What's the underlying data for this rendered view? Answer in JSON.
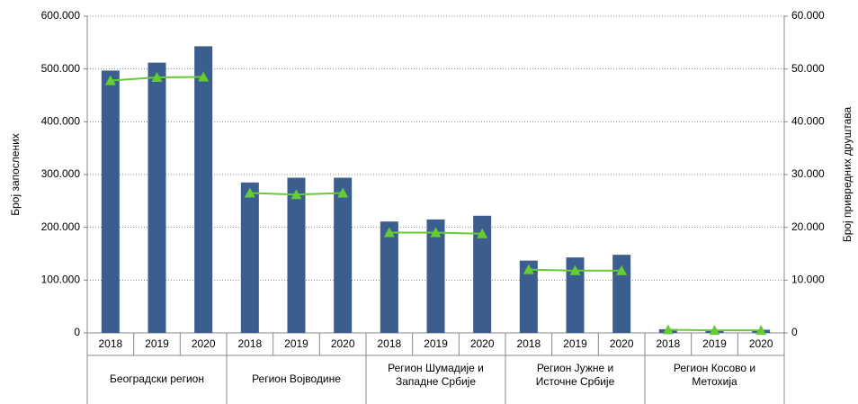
{
  "chart_data": {
    "type": "bar",
    "y_label": "Број  запослених",
    "y2_label": "Број привредних друштава",
    "categories": [
      "2018",
      "2019",
      "2020",
      "2018",
      "2019",
      "2020",
      "2018",
      "2019",
      "2020",
      "2018",
      "2019",
      "2020",
      "2018",
      "2019",
      "2020"
    ],
    "groups": [
      "Београдски регион",
      "Регион Војводине",
      "Регион Шумадије и\nЗападне Србије",
      "Регион Јужне и\nИсточне Србије",
      "Регион Косово и\nМетохија"
    ],
    "series": [
      {
        "type": "bar",
        "color": "#3b5e8e",
        "values": [
          497000,
          512000,
          543000,
          285000,
          294000,
          294000,
          211000,
          215000,
          222000,
          137000,
          143000,
          148000,
          7000,
          6000,
          6000
        ]
      },
      {
        "type": "line",
        "axis": "y2",
        "color": "#66cc33",
        "values": [
          47800,
          48400,
          48500,
          26500,
          26200,
          26500,
          19000,
          19000,
          18800,
          12000,
          11800,
          11800,
          600,
          500,
          500
        ]
      }
    ],
    "ylim": [
      0,
      600000
    ],
    "yticks": [
      0,
      {
        "value": 100000,
        "label": "100.000"
      },
      {
        "value": 200000,
        "label": "200.000"
      },
      {
        "value": 300000,
        "label": "300.000"
      },
      {
        "value": 400000,
        "label": "400.000"
      },
      {
        "value": 500000,
        "label": "500.000"
      },
      {
        "value": 600000,
        "label": "600.000"
      }
    ],
    "y2lim": [
      0,
      60000
    ],
    "y2ticks": [
      0,
      {
        "value": 10000,
        "label": "10.000"
      },
      {
        "value": 20000,
        "label": "20.000"
      },
      {
        "value": 30000,
        "label": "30.000"
      },
      {
        "value": 40000,
        "label": "40.000"
      },
      {
        "value": 50000,
        "label": "50.000"
      },
      {
        "value": 60000,
        "label": "60.000"
      }
    ],
    "grid": true
  }
}
